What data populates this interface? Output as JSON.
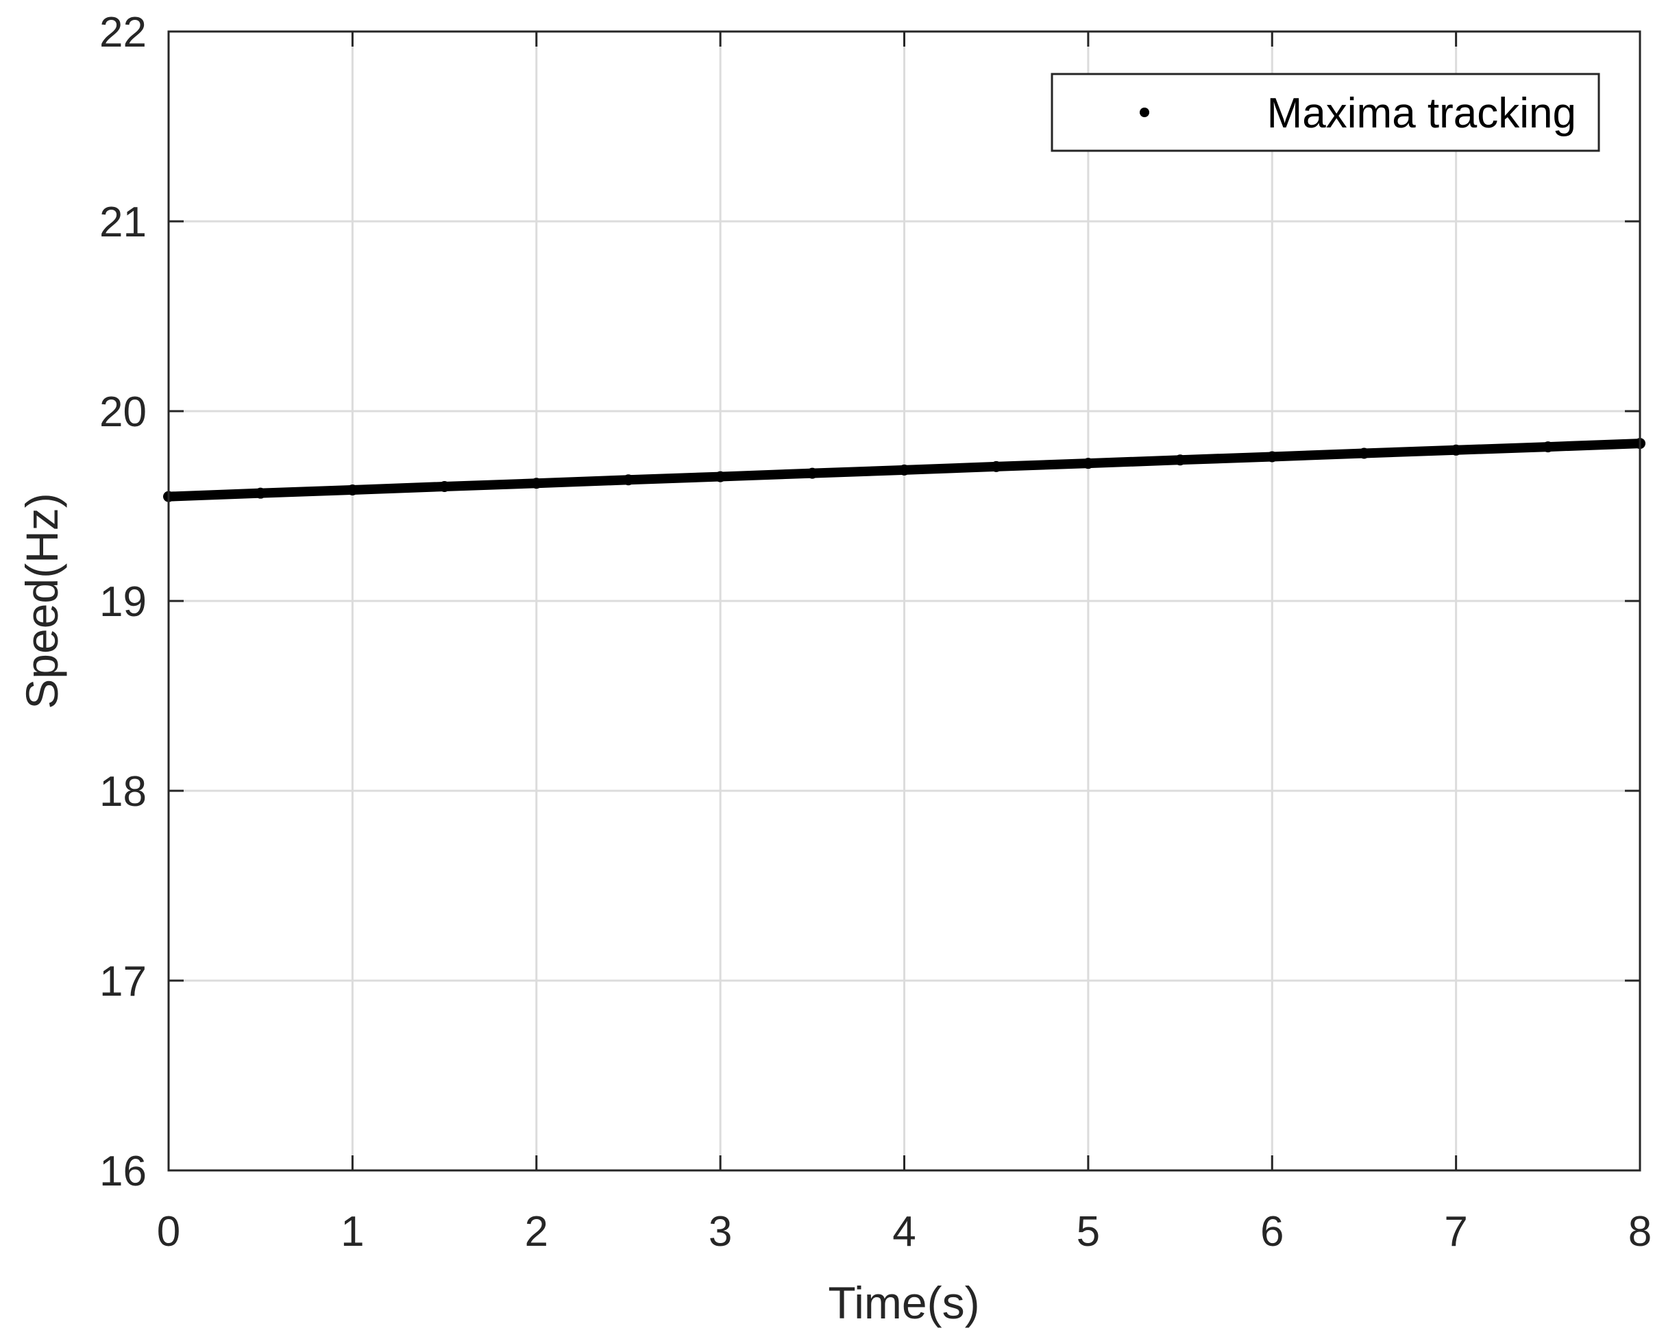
{
  "chart_data": {
    "type": "scatter",
    "xlabel": "Time(s)",
    "ylabel": "Speed(Hz)",
    "xlim": [
      0,
      8
    ],
    "ylim": [
      16,
      22
    ],
    "x_ticks": [
      "0",
      "1",
      "2",
      "3",
      "4",
      "5",
      "6",
      "7",
      "8"
    ],
    "y_ticks": [
      "16",
      "17",
      "18",
      "19",
      "20",
      "21",
      "22"
    ],
    "grid": true,
    "legend_position": "top-right",
    "series": [
      {
        "name": "Maxima tracking",
        "color": "#000000",
        "marker": "dot",
        "x": [
          0,
          0.5,
          1,
          1.5,
          2,
          2.5,
          3,
          3.5,
          4,
          4.5,
          5,
          5.5,
          6,
          6.5,
          7,
          7.5,
          8
        ],
        "y": [
          19.55,
          19.568,
          19.585,
          19.603,
          19.62,
          19.638,
          19.655,
          19.673,
          19.69,
          19.708,
          19.725,
          19.743,
          19.76,
          19.778,
          19.795,
          19.812,
          19.83
        ]
      }
    ]
  }
}
